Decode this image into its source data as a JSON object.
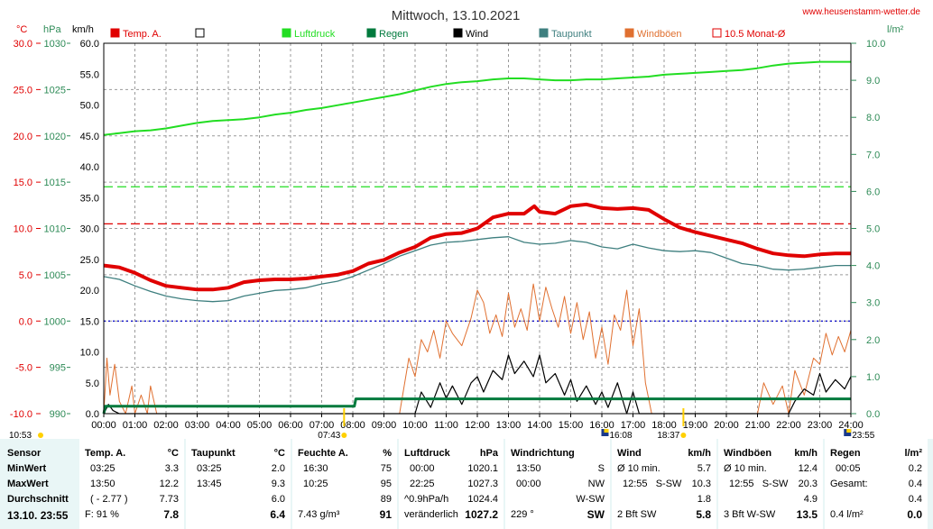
{
  "header": {
    "title": "Mittwoch, 13.10.2021",
    "site": "www.heusenstamm-wetter.de",
    "units_left": [
      "°C",
      "hPa",
      "km/h"
    ],
    "unit_right": "l/m²"
  },
  "legend": [
    {
      "label": "Temp. A.",
      "color": "#e00000",
      "style": "filled"
    },
    {
      "label": "",
      "color": "#000000",
      "style": "hollow"
    },
    {
      "label": "Luftdruck",
      "color": "#22dd22",
      "style": "filled"
    },
    {
      "label": "Regen",
      "color": "#007a3d",
      "style": "filled"
    },
    {
      "label": "Wind",
      "color": "#000000",
      "style": "filled"
    },
    {
      "label": "Taupunkt",
      "color": "#3e7f7f",
      "style": "filled"
    },
    {
      "label": "Windböen",
      "color": "#e07030",
      "style": "filled"
    },
    {
      "label": "10.5 Monat-Ø",
      "color": "#e00000",
      "style": "hollow"
    }
  ],
  "chart_data": {
    "type": "line",
    "title": "Mittwoch, 13.10.2021",
    "x_tick_labels": [
      "00:00",
      "01:00",
      "02:00",
      "03:00",
      "04:00",
      "05:00",
      "06:00",
      "07:00",
      "08:00",
      "09:00",
      "10:00",
      "11:00",
      "12:00",
      "13:00",
      "14:00",
      "15:00",
      "16:00",
      "17:00",
      "18:00",
      "19:00",
      "20:00",
      "21:00",
      "22:00",
      "23:00",
      "24:00"
    ],
    "x_range_hours": [
      0,
      24
    ],
    "axes": {
      "temp_c": {
        "ticks": [
          "30.0",
          "25.0",
          "20.0",
          "15.0",
          "10.0",
          "5.0",
          "0.0",
          "-5.0",
          "-10.0"
        ],
        "range": [
          -10,
          30
        ],
        "color": "#e00000"
      },
      "pressure_hpa": {
        "ticks": [
          "1030",
          "1025",
          "1020",
          "1015",
          "1010",
          "1005",
          "1000",
          "995",
          "990"
        ],
        "range": [
          990,
          1030
        ],
        "color": "#2e8b57"
      },
      "wind_kmh": {
        "ticks": [
          "60.0",
          "55.0",
          "50.0",
          "45.0",
          "40.0",
          "35.0",
          "30.0",
          "25.0",
          "20.0",
          "15.0",
          "10.0",
          "5.0",
          "0.0"
        ],
        "range": [
          0,
          60
        ],
        "color": "#000000"
      },
      "rain_lm2": {
        "ticks": [
          "10.0",
          "9.0",
          "8.0",
          "7.0",
          "6.0",
          "5.0",
          "4.0",
          "3.0",
          "2.0",
          "1.0",
          "0.0"
        ],
        "range": [
          0,
          10
        ],
        "color": "#2e8b57"
      }
    },
    "grid": true,
    "reference_lines": [
      {
        "name": "10.5 Monat-Ø",
        "axis": "temp_c",
        "value": 10.5,
        "color": "#e00000"
      },
      {
        "axis": "pressure_hpa",
        "value": 1014.5,
        "color": "#22dd22"
      },
      {
        "axis": "temp_c",
        "value": 0,
        "color": "#0000cc"
      }
    ],
    "sun_marks": [
      {
        "label": "07:43",
        "hour": 7.72
      },
      {
        "label": "18:37",
        "hour": 18.62
      }
    ],
    "moon_marks": [
      {
        "label": "10:53"
      },
      {
        "label": "16:08",
        "hour": 16.13
      },
      {
        "label": "23:55",
        "hour": 23.92
      }
    ],
    "series": [
      {
        "name": "Temp. A.",
        "axis": "temp_c",
        "color": "#e00000",
        "x": [
          0,
          0.5,
          1,
          1.5,
          2,
          2.5,
          3,
          3.5,
          4,
          4.5,
          5,
          5.5,
          6,
          6.5,
          7,
          7.5,
          8,
          8.5,
          9,
          9.5,
          10,
          10.5,
          11,
          11.5,
          12,
          12.5,
          13,
          13.5,
          13.83,
          14,
          14.5,
          15,
          15.5,
          16,
          16.5,
          17,
          17.5,
          18,
          18.5,
          19,
          19.5,
          20,
          20.5,
          21,
          21.5,
          22,
          22.5,
          23,
          23.5,
          24
        ],
        "y": [
          6.0,
          5.8,
          5.2,
          4.4,
          3.8,
          3.6,
          3.4,
          3.4,
          3.6,
          4.2,
          4.4,
          4.5,
          4.5,
          4.6,
          4.8,
          5.0,
          5.4,
          6.2,
          6.6,
          7.4,
          8.0,
          9.0,
          9.4,
          9.5,
          10.0,
          11.2,
          11.6,
          11.6,
          12.4,
          11.8,
          11.6,
          12.4,
          12.6,
          12.2,
          12.1,
          12.2,
          12.0,
          11.0,
          10.1,
          9.6,
          9.2,
          8.8,
          8.4,
          7.8,
          7.3,
          7.1,
          7.0,
          7.2,
          7.3,
          7.3
        ]
      },
      {
        "name": "Taupunkt",
        "axis": "temp_c",
        "color": "#3e7f7f",
        "x": [
          0,
          0.5,
          1,
          1.5,
          2,
          2.5,
          3,
          3.5,
          4,
          4.5,
          5,
          5.5,
          6,
          6.5,
          7,
          7.5,
          8,
          8.5,
          9,
          9.5,
          10,
          10.5,
          11,
          11.5,
          12,
          12.5,
          13,
          13.5,
          14,
          14.5,
          15,
          15.5,
          16,
          16.5,
          17,
          17.5,
          18,
          18.5,
          19,
          19.5,
          20,
          20.5,
          21,
          21.5,
          22,
          22.5,
          23,
          23.5,
          24
        ],
        "y": [
          4.8,
          4.5,
          3.8,
          3.2,
          2.7,
          2.4,
          2.2,
          2.1,
          2.2,
          2.7,
          3.0,
          3.3,
          3.4,
          3.6,
          4.0,
          4.3,
          4.8,
          5.5,
          6.2,
          7.0,
          7.6,
          8.2,
          8.5,
          8.6,
          8.8,
          9.0,
          9.1,
          8.5,
          8.3,
          8.4,
          8.7,
          8.5,
          8.0,
          7.8,
          8.3,
          7.9,
          7.6,
          7.5,
          7.6,
          7.4,
          6.8,
          6.2,
          6.0,
          5.6,
          5.5,
          5.6,
          5.8,
          6.0,
          6.0
        ]
      },
      {
        "name": "Luftdruck",
        "axis": "pressure_hpa",
        "color": "#22dd22",
        "x": [
          0,
          0.5,
          1,
          1.5,
          2,
          2.5,
          3,
          3.5,
          4,
          4.5,
          5,
          5.5,
          6,
          6.5,
          7,
          7.5,
          8,
          8.5,
          9,
          9.5,
          10,
          10.5,
          11,
          11.5,
          12,
          12.5,
          13,
          13.5,
          14,
          14.5,
          15,
          15.5,
          16,
          16.5,
          17,
          17.5,
          18,
          18.5,
          19,
          19.5,
          20,
          20.5,
          21,
          21.5,
          22,
          22.5,
          23,
          23.5,
          24
        ],
        "y": [
          1020.1,
          1020.3,
          1020.5,
          1020.6,
          1020.8,
          1021.1,
          1021.4,
          1021.6,
          1021.7,
          1021.8,
          1022.0,
          1022.3,
          1022.5,
          1022.8,
          1023.0,
          1023.3,
          1023.6,
          1023.9,
          1024.2,
          1024.5,
          1024.9,
          1025.3,
          1025.6,
          1025.8,
          1025.9,
          1026.1,
          1026.2,
          1026.2,
          1026.1,
          1026.0,
          1026.0,
          1026.1,
          1026.1,
          1026.2,
          1026.3,
          1026.4,
          1026.6,
          1026.7,
          1026.8,
          1026.9,
          1027.0,
          1027.1,
          1027.3,
          1027.6,
          1027.8,
          1027.9,
          1028.0,
          1028.0,
          1028.0
        ]
      },
      {
        "name": "Regen",
        "axis": "rain_lm2",
        "color": "#007a3d",
        "x": [
          0,
          0.05,
          0.1,
          8.05,
          8.1,
          24
        ],
        "y": [
          0,
          0.2,
          0.2,
          0.2,
          0.4,
          0.4
        ]
      },
      {
        "name": "Wind",
        "axis": "wind_kmh",
        "color": "#000000",
        "x": [
          0,
          0.15,
          0.3,
          0.5,
          1,
          1.5,
          2,
          2.5,
          3,
          3.5,
          4,
          4.5,
          5,
          5.5,
          6,
          6.5,
          7,
          7.5,
          8,
          8.5,
          9,
          9.5,
          10,
          10.2,
          10.5,
          10.8,
          11,
          11.2,
          11.5,
          11.8,
          12,
          12.2,
          12.5,
          12.8,
          13,
          13.2,
          13.5,
          13.8,
          14,
          14.2,
          14.5,
          14.8,
          15,
          15.2,
          15.5,
          15.8,
          16,
          16.2,
          16.5,
          16.8,
          17,
          17.2,
          17.5,
          17.8,
          18,
          18.5,
          19,
          19.5,
          20,
          20.5,
          21,
          21.5,
          22,
          22.2,
          22.5,
          22.8,
          23,
          23.2,
          23.5,
          23.8,
          24
        ],
        "y": [
          0,
          1.5,
          0.5,
          0,
          0,
          0,
          0,
          0,
          0,
          0,
          0,
          0,
          0,
          0,
          0,
          0,
          0,
          0,
          0,
          0,
          0,
          0,
          0,
          3.5,
          1.0,
          5.0,
          2.5,
          4.5,
          1.5,
          5.0,
          6.0,
          3.5,
          7.0,
          5.5,
          9.5,
          6.5,
          8.5,
          6.0,
          9.5,
          5.0,
          6.5,
          3.0,
          5.5,
          2.0,
          4.5,
          1.5,
          3.5,
          1.0,
          5.0,
          0,
          3.5,
          0,
          0,
          0,
          0,
          0,
          0,
          0,
          0,
          0,
          0,
          0,
          0,
          2.0,
          4.0,
          3.0,
          6.5,
          3.5,
          5.5,
          4.0,
          6.0
        ]
      },
      {
        "name": "Windböen",
        "axis": "wind_kmh",
        "color": "#e07030",
        "x": [
          0,
          0.1,
          0.2,
          0.35,
          0.5,
          0.7,
          0.9,
          1,
          1.2,
          1.4,
          1.5,
          1.7,
          2,
          3,
          4,
          5,
          6,
          7,
          8,
          9,
          9.5,
          9.8,
          10,
          10.2,
          10.4,
          10.6,
          10.8,
          11,
          11.2,
          11.5,
          11.8,
          12,
          12.2,
          12.4,
          12.6,
          12.8,
          13,
          13.2,
          13.4,
          13.6,
          13.8,
          14,
          14.2,
          14.4,
          14.6,
          14.8,
          15,
          15.2,
          15.4,
          15.6,
          15.8,
          16,
          16.2,
          16.4,
          16.6,
          16.8,
          17,
          17.2,
          17.4,
          17.6,
          18,
          19,
          20,
          21,
          21.2,
          21.5,
          21.8,
          22,
          22.2,
          22.5,
          22.8,
          23,
          23.2,
          23.4,
          23.6,
          23.8,
          24
        ],
        "y": [
          0,
          9.0,
          3.0,
          8.0,
          2.0,
          0,
          4.5,
          0,
          3.0,
          0,
          4.5,
          0,
          0,
          0,
          0,
          0,
          0,
          0,
          0,
          0,
          0,
          9.0,
          6.0,
          12.0,
          10.0,
          13.5,
          9.0,
          15.0,
          13.0,
          11.0,
          15.5,
          20.0,
          18.0,
          13.0,
          16.0,
          12.5,
          19.5,
          14.0,
          17.0,
          13.5,
          21.0,
          15.0,
          20.5,
          17.0,
          14.0,
          19.0,
          13.0,
          18.0,
          12.0,
          16.5,
          9.0,
          14.0,
          8.0,
          16.0,
          13.5,
          20.0,
          11.0,
          17.0,
          5.0,
          0,
          0,
          0,
          0,
          0,
          5.0,
          1.5,
          4.5,
          0,
          7.0,
          3.0,
          9.0,
          8.0,
          13.0,
          9.5,
          12.5,
          10.0,
          13.5
        ]
      }
    ]
  },
  "stats": {
    "sensor": {
      "header": "Sensor",
      "rows": [
        "MinWert",
        "MaxWert",
        "Durchschnitt"
      ],
      "date": "13.10. 23:55"
    },
    "temp": {
      "header": "Temp. A.",
      "unit": "°C",
      "rows": [
        [
          "03:25",
          "3.3"
        ],
        [
          "13:50",
          "12.2"
        ],
        [
          "( - 2.77 )",
          "7.73"
        ]
      ],
      "foot_left": "F: 91 %",
      "foot_value": "7.8"
    },
    "dew": {
      "header": "Taupunkt",
      "unit": "°C",
      "rows": [
        [
          "03:25",
          "2.0"
        ],
        [
          "13:45",
          "9.3"
        ],
        [
          "",
          "6.0"
        ]
      ],
      "foot_value": "6.4"
    },
    "hum": {
      "header": "Feuchte A.",
      "unit": "%",
      "rows": [
        [
          "16:30",
          "75"
        ],
        [
          "10:25",
          "95"
        ],
        [
          "",
          "89"
        ]
      ],
      "foot_left": "7.43 g/m³",
      "foot_value": "91"
    },
    "press": {
      "header": "Luftdruck",
      "unit": "hPa",
      "rows": [
        [
          "00:00",
          "1020.1"
        ],
        [
          "22:25",
          "1027.3"
        ],
        [
          "^0.9hPa/h",
          "1024.4"
        ]
      ],
      "foot_left": "veränderlich",
      "foot_value": "1027.2"
    },
    "dir": {
      "header": "Windrichtung",
      "rows": [
        [
          "13:50",
          "S"
        ],
        [
          "00:00",
          "NW"
        ],
        [
          "",
          "W-SW"
        ]
      ],
      "foot_left": "229 °",
      "foot_value": "SW"
    },
    "wind": {
      "header": "Wind",
      "unit": "km/h",
      "rows": [
        [
          "Ø 10 min.",
          "5.7"
        ],
        [
          "12:55   S-SW",
          "10.3"
        ],
        [
          "",
          "1.8"
        ]
      ],
      "foot_left": "2 Bft SW",
      "foot_value": "5.8"
    },
    "gust": {
      "header": "Windböen",
      "unit": "km/h",
      "rows": [
        [
          "Ø 10 min.",
          "12.4"
        ],
        [
          "12:55   S-SW",
          "20.3"
        ],
        [
          "",
          "4.9"
        ]
      ],
      "foot_left": "3 Bft W-SW",
      "foot_value": "13.5"
    },
    "rain": {
      "header": "Regen",
      "unit": "l/m²",
      "rows": [
        [
          "00:05",
          "0.2"
        ],
        [
          "Gesamt:",
          "0.4"
        ],
        [
          "",
          "0.4"
        ]
      ],
      "foot_left": "0.4 l/m²",
      "foot_value": "0.0"
    }
  }
}
